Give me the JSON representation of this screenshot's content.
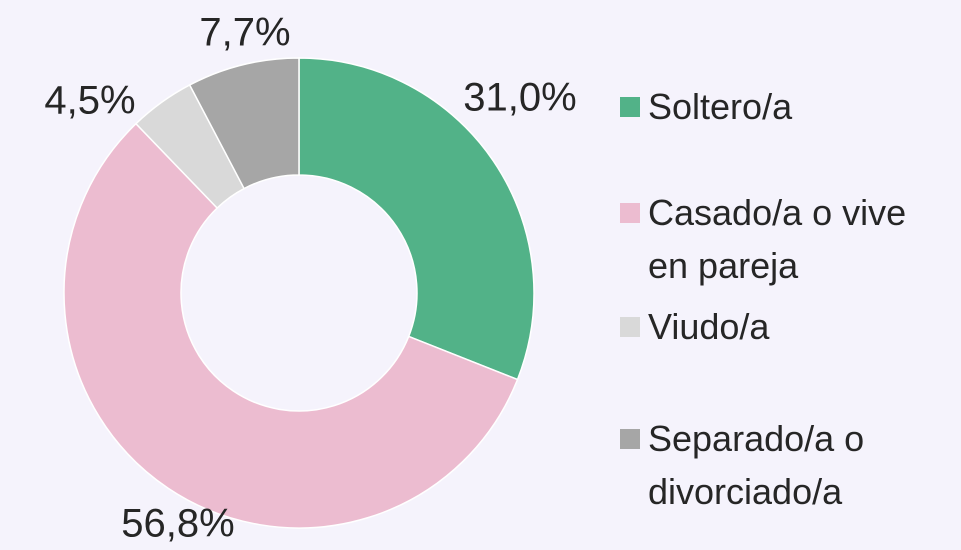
{
  "chart_data": {
    "type": "donut",
    "categories": [
      "Soltero/a",
      "Casado/a o vive en pareja",
      "Viudo/a",
      "Separado/a o divorciado/a"
    ],
    "values": [
      31.0,
      56.8,
      4.5,
      7.7
    ],
    "value_labels": [
      "31,0%",
      "56,8%",
      "4,5%",
      "7,7%"
    ],
    "colors": [
      "#52b288",
      "#ecbcd0",
      "#d9d9d9",
      "#a6a6a6"
    ],
    "legend": "right"
  }
}
